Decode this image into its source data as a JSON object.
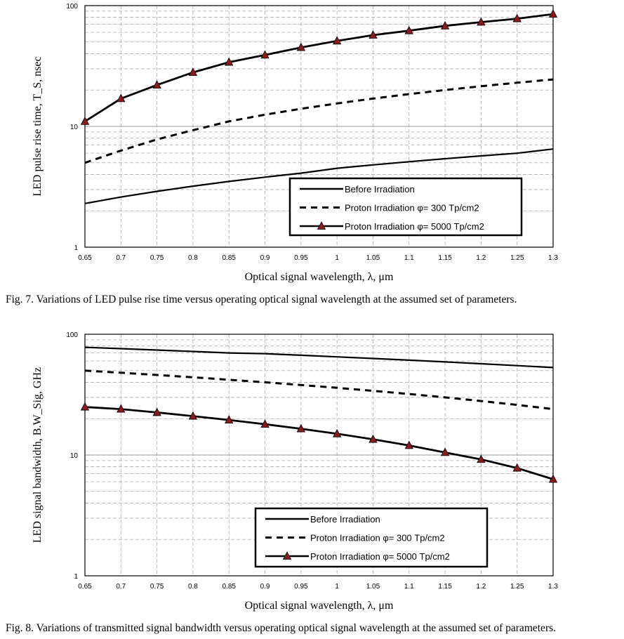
{
  "charts": [
    {
      "type": "line",
      "yscale": "log",
      "ylabel": "LED pulse rise time, T_S, nsec",
      "xlabel": "Optical signal wavelength, λ, μm",
      "caption": "Fig. 7. Variations of LED pulse rise time versus operating optical signal wavelength at the assumed set of parameters.",
      "xlim": [
        0.65,
        1.3
      ],
      "ylim": [
        1,
        100
      ],
      "x": [
        0.65,
        0.7,
        0.75,
        0.8,
        0.85,
        0.9,
        0.95,
        1,
        1.05,
        1.1,
        1.15,
        1.2,
        1.25,
        1.3
      ],
      "xtick_labels": [
        "0.65",
        "0.7",
        "0.75",
        "0.8",
        "0.85",
        "0.9",
        "0.95",
        "1",
        "1.05",
        "1.1",
        "1.15",
        "1.2",
        "1.25",
        "1.3"
      ],
      "ytick_labels": [
        "1",
        "10",
        "100"
      ],
      "series": [
        {
          "name": "Before Irradiation",
          "style": "solid",
          "values": [
            2.3,
            2.6,
            2.9,
            3.2,
            3.5,
            3.8,
            4.1,
            4.5,
            4.8,
            5.1,
            5.4,
            5.7,
            6.0,
            6.5
          ]
        },
        {
          "name": "Proton Irradiation φ= 300 Tp/cm2",
          "style": "dashed",
          "values": [
            5.0,
            6.3,
            7.8,
            9.3,
            11.0,
            12.5,
            14.0,
            15.5,
            17.0,
            18.5,
            20.0,
            21.5,
            23.0,
            24.5
          ]
        },
        {
          "name": "Proton Irradiation φ= 5000 Tp/cm2",
          "style": "triangle",
          "values": [
            11,
            17,
            22,
            28,
            34,
            39,
            45,
            51,
            57,
            62,
            68,
            73,
            78,
            85
          ]
        }
      ],
      "legend": [
        "Before Irradiation",
        "Proton Irradiation φ= 300 Tp/cm2",
        "Proton Irradiation φ= 5000 Tp/cm2"
      ]
    },
    {
      "type": "line",
      "yscale": "log",
      "ylabel": "LED signal bandwidth, B.W_Sig, GHz",
      "xlabel": "Optical signal wavelength, λ, μm",
      "caption": "Fig. 8. Variations of transmitted signal bandwidth versus operating optical signal wavelength at the assumed set of parameters.",
      "xlim": [
        0.65,
        1.3
      ],
      "ylim": [
        1,
        100
      ],
      "x": [
        0.65,
        0.7,
        0.75,
        0.8,
        0.85,
        0.9,
        0.95,
        1,
        1.05,
        1.1,
        1.15,
        1.2,
        1.25,
        1.3
      ],
      "xtick_labels": [
        "0.65",
        "0.7",
        "0.75",
        "0.8",
        "0.85",
        "0.9",
        "0.95",
        "1",
        "1.05",
        "1.1",
        "1.15",
        "1.2",
        "1.25",
        "1.3"
      ],
      "ytick_labels": [
        "1",
        "10",
        "100"
      ],
      "series": [
        {
          "name": "Before Irradiation",
          "style": "solid",
          "values": [
            78,
            76,
            74,
            72,
            70,
            69,
            67,
            65,
            63,
            61,
            59,
            57,
            55,
            53
          ]
        },
        {
          "name": "Proton Irradiation φ= 300 Tp/cm2",
          "style": "dashed",
          "values": [
            50,
            48,
            46,
            44,
            42,
            40,
            38,
            36,
            34,
            32,
            30,
            28,
            26,
            24
          ]
        },
        {
          "name": "Proton Irradiation φ= 5000 Tp/cm2",
          "style": "triangle",
          "values": [
            25,
            24,
            22.5,
            21,
            19.5,
            18,
            16.5,
            15,
            13.5,
            12,
            10.5,
            9.2,
            7.8,
            6.3
          ]
        }
      ],
      "legend": [
        "Before Irradiation",
        "Proton Irradiation φ= 300 Tp/cm2",
        "Proton Irradiation φ= 5000 Tp/cm2"
      ]
    }
  ]
}
